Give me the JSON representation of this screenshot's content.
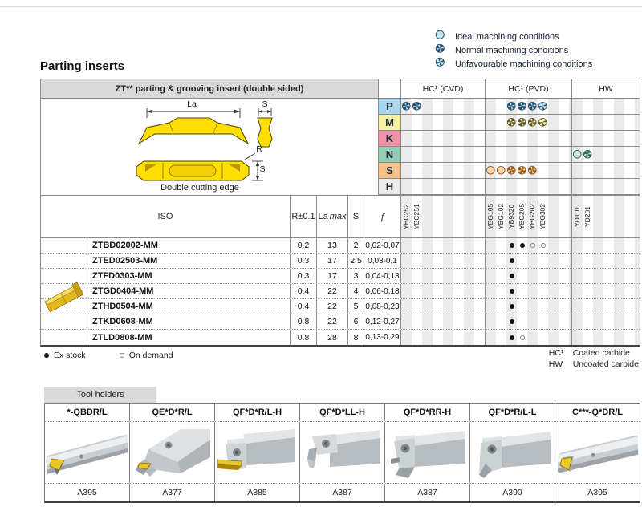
{
  "legend": {
    "items": [
      {
        "icon": "ideal",
        "label": "Ideal machining conditions"
      },
      {
        "icon": "normal",
        "label": "Normal machining conditions"
      },
      {
        "icon": "unfavourable",
        "label": "Unfavourable machining conditions"
      }
    ]
  },
  "title": "Parting inserts",
  "insert_table": {
    "zt_header": "ZT** parting & grooving insert (double sided)",
    "groups": {
      "cvd": "HC¹ (CVD)",
      "pvd": "HC¹ (PVD)",
      "hw": "HW"
    },
    "diagram": {
      "la": "La",
      "s_top": "S",
      "r": "R",
      "s_side": "S",
      "caption": "Double cutting edge"
    },
    "app_rows": [
      {
        "letter": "P",
        "color": "#a9d6ee",
        "tint": "blue",
        "icons": {
          "cvd": [
            {
              "slot": 0,
              "type": "normal"
            },
            {
              "slot": 1,
              "type": "normal"
            }
          ],
          "pvd": [
            {
              "slot": 2,
              "type": "normal"
            },
            {
              "slot": 3,
              "type": "normal"
            },
            {
              "slot": 4,
              "type": "normal"
            },
            {
              "slot": 5,
              "type": "unfav"
            }
          ],
          "hw": []
        }
      },
      {
        "letter": "M",
        "color": "#f6f0a7",
        "tint": "yellow",
        "icons": {
          "cvd": [],
          "pvd": [
            {
              "slot": 2,
              "type": "normal"
            },
            {
              "slot": 3,
              "type": "normal"
            },
            {
              "slot": 4,
              "type": "normal"
            },
            {
              "slot": 5,
              "type": "unfav"
            }
          ],
          "hw": []
        }
      },
      {
        "letter": "K",
        "color": "#ef93ab",
        "tint": "pink",
        "icons": {
          "cvd": [],
          "pvd": [],
          "hw": []
        }
      },
      {
        "letter": "N",
        "color": "#93cdb2",
        "tint": "green",
        "icons": {
          "cvd": [],
          "pvd": [],
          "hw": [
            {
              "slot": 0,
              "type": "ideal"
            },
            {
              "slot": 1,
              "type": "normal"
            }
          ]
        }
      },
      {
        "letter": "S",
        "color": "#f5c28e",
        "tint": "orange",
        "icons": {
          "cvd": [],
          "pvd": [
            {
              "slot": 0,
              "type": "ideal"
            },
            {
              "slot": 1,
              "type": "ideal"
            },
            {
              "slot": 2,
              "type": "normal"
            },
            {
              "slot": 3,
              "type": "normal"
            },
            {
              "slot": 4,
              "type": "normal"
            }
          ],
          "hw": []
        }
      },
      {
        "letter": "H",
        "color": "#ebebe9",
        "tint": "gray",
        "icons": {
          "cvd": [],
          "pvd": [],
          "hw": []
        }
      }
    ],
    "columns": {
      "iso": "ISO",
      "r": "R±0.1",
      "la": "La",
      "la_italic": "max",
      "s": "S",
      "f": "f"
    },
    "grades": {
      "cvd": [
        "YBC252",
        "YBC251"
      ],
      "pvd": [
        "YBG105",
        "YBG102",
        "YB9320",
        "YBG205",
        "YBG202",
        "YBG302"
      ],
      "hw": [
        "YD101",
        "YD201"
      ]
    },
    "products": [
      {
        "iso": "ZTBD02002-MM",
        "r": "0.2",
        "la": "13",
        "s": "2",
        "f": "0,02-0,07",
        "dots": {
          "pvd": [
            {
              "slot": 2,
              "type": "ex"
            },
            {
              "slot": 3,
              "type": "ex"
            },
            {
              "slot": 4,
              "type": "od"
            },
            {
              "slot": 5,
              "type": "od"
            }
          ]
        }
      },
      {
        "iso": "ZTED02503-MM",
        "r": "0.3",
        "la": "17",
        "s": "2.5",
        "f": "0,03-0,1",
        "dots": {
          "pvd": [
            {
              "slot": 2,
              "type": "ex"
            }
          ]
        }
      },
      {
        "iso": "ZTFD0303-MM",
        "r": "0.3",
        "la": "17",
        "s": "3",
        "f": "0,04-0,13",
        "dots": {
          "pvd": [
            {
              "slot": 2,
              "type": "ex"
            }
          ]
        }
      },
      {
        "iso": "ZTGD0404-MM",
        "r": "0.4",
        "la": "22",
        "s": "4",
        "f": "0,06-0,18",
        "dots": {
          "pvd": [
            {
              "slot": 2,
              "type": "ex"
            }
          ]
        }
      },
      {
        "iso": "ZTHD0504-MM",
        "r": "0.4",
        "la": "22",
        "s": "5",
        "f": "0,08-0,23",
        "dots": {
          "pvd": [
            {
              "slot": 2,
              "type": "ex"
            }
          ]
        }
      },
      {
        "iso": "ZTKD0608-MM",
        "r": "0.8",
        "la": "22",
        "s": "6",
        "f": "0,12-0,27",
        "dots": {
          "pvd": [
            {
              "slot": 2,
              "type": "ex"
            }
          ]
        }
      },
      {
        "iso": "ZTLD0808-MM",
        "r": "0.8",
        "la": "28",
        "s": "8",
        "f": "0,13-0,29",
        "dots": {
          "pvd": [
            {
              "slot": 2,
              "type": "ex"
            },
            {
              "slot": 3,
              "type": "od"
            }
          ]
        }
      }
    ],
    "stock_legend": {
      "ex": "Ex stock",
      "od": "On demand"
    },
    "carbide_notes": [
      {
        "code": "HC¹",
        "label": "Coated carbide"
      },
      {
        "code": "HW",
        "label": "Uncoated carbide"
      }
    ]
  },
  "toolholders": {
    "tab": "Tool holders",
    "columns": [
      {
        "label": "*-QBDR/L",
        "ref": "A395",
        "image": "round-shank-bar"
      },
      {
        "label": "QE*D*R/L",
        "ref": "A377",
        "image": "blade-holder"
      },
      {
        "label": "QF*D*R/L-H",
        "ref": "A385",
        "image": "square-shank-head-insert"
      },
      {
        "label": "QF*D*LL-H",
        "ref": "A387",
        "image": "square-shank-top-clamp"
      },
      {
        "label": "QF*D*RR-H",
        "ref": "A387",
        "image": "square-shank-screw-head"
      },
      {
        "label": "QF*D*R/L-L",
        "ref": "A390",
        "image": "square-shank-angled-front"
      },
      {
        "label": "C***-Q*DR/L",
        "ref": "A395",
        "image": "round-bar-insert"
      }
    ]
  }
}
